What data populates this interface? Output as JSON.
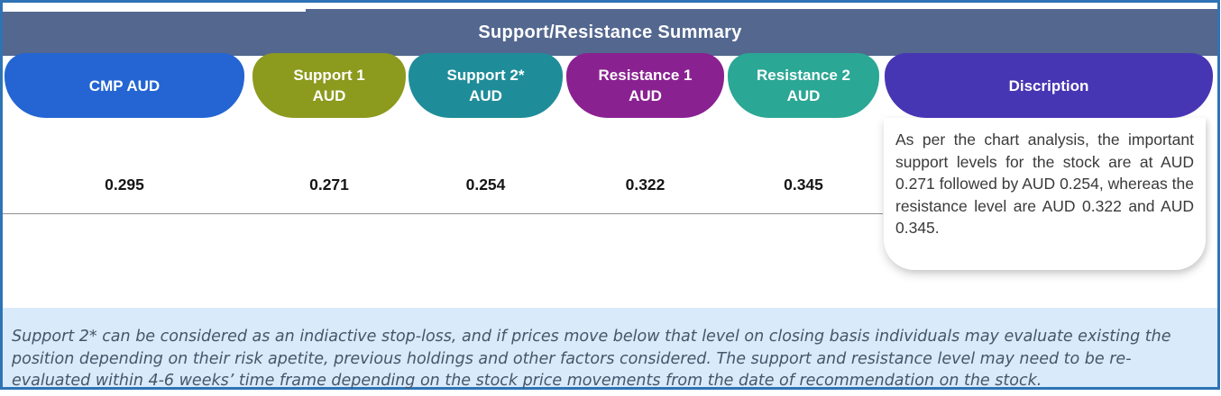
{
  "title": "Support/Resistance Summary",
  "columns": [
    {
      "label": "CMP AUD",
      "value": "0.295"
    },
    {
      "label": "Support 1\nAUD",
      "value": "0.271"
    },
    {
      "label": "Support 2*\nAUD",
      "value": "0.254"
    },
    {
      "label": "Resistance 1\nAUD",
      "value": "0.322"
    },
    {
      "label": "Resistance 2\nAUD",
      "value": "0.345"
    }
  ],
  "description": {
    "header": "Discription",
    "text": "As per the chart analysis, the important support levels for the stock are at AUD 0.271 followed by AUD 0.254, whereas the resistance level are AUD 0.322 and AUD 0.345."
  },
  "footnote": "Support 2* can be considered as an indiactive stop-loss, and if prices move below that level on closing basis individuals may evaluate existing the position depending on their risk apetite, previous holdings and other factors considered. The support and resistance level may need to be re-evaluated within 4-6 weeks’ time frame depending on the stock price movements from  the date of recommendation on the stock.",
  "colors": {
    "outer_border": "#2E74B5",
    "header_bar": "#53678F",
    "cmp_pill": "#2465D3",
    "support1_pill": "#8C9A1E",
    "support2_pill": "#1F8D99",
    "resistance1_pill": "#8A2191",
    "resistance2_pill": "#2BA795",
    "description_pill": "#4636B3",
    "footnote_bg": "#D9EAFA"
  }
}
